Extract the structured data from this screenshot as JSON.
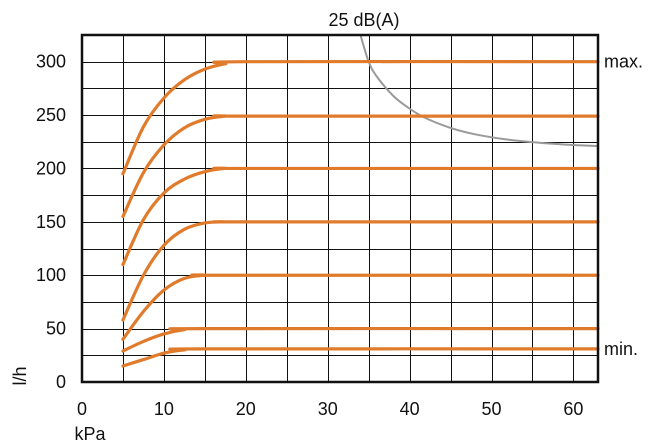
{
  "chart_data": {
    "type": "line",
    "title": "25 dB(A)",
    "xlabel": "kPa",
    "ylabel": "l/h",
    "xlim": [
      0,
      63
    ],
    "ylim": [
      0,
      325
    ],
    "x_ticks": [
      0,
      10,
      20,
      30,
      40,
      50,
      60
    ],
    "y_ticks": [
      0,
      50,
      100,
      150,
      200,
      250,
      300
    ],
    "x_grid_step": 5,
    "y_grid_step": 25,
    "grid": true,
    "line_color": "#e07b2c",
    "noise_color": "#9a9a9a",
    "side_labels": {
      "max": "max.",
      "min": "min."
    },
    "series": [
      {
        "x": [
          5,
          7.5,
          10,
          12.5,
          15,
          17.5,
          20,
          63
        ],
        "y": [
          195,
          239,
          266,
          283,
          293,
          298,
          300,
          300
        ]
      },
      {
        "x": [
          5,
          7.5,
          10,
          12.5,
          15,
          17.5,
          20,
          63
        ],
        "y": [
          155,
          196,
          222,
          238,
          246,
          249,
          249,
          249
        ]
      },
      {
        "x": [
          5,
          7.5,
          10,
          12.5,
          15,
          17.5,
          20,
          63
        ],
        "y": [
          110,
          152,
          177,
          190,
          197,
          200,
          200,
          200
        ]
      },
      {
        "x": [
          5,
          7.5,
          10,
          12.5,
          15,
          17.5,
          20,
          63
        ],
        "y": [
          58,
          100,
          128,
          143,
          149,
          150,
          150,
          150
        ]
      },
      {
        "x": [
          5,
          7.5,
          10,
          12.5,
          15,
          17.5,
          63
        ],
        "y": [
          40,
          66,
          86,
          97,
          100,
          100,
          100
        ]
      },
      {
        "x": [
          5,
          7.5,
          10,
          12.5,
          15,
          63
        ],
        "y": [
          29,
          38,
          45,
          49,
          50,
          50
        ]
      },
      {
        "x": [
          5,
          7.5,
          10,
          12.5,
          15,
          63
        ],
        "y": [
          15,
          21,
          27,
          30,
          31,
          31
        ]
      }
    ],
    "noise_curve": {
      "x": [
        34,
        35,
        36,
        38,
        40,
        42,
        45,
        48,
        52,
        56,
        60,
        63
      ],
      "y": [
        325,
        300,
        286,
        268,
        256,
        247,
        238,
        232,
        227,
        224,
        222,
        221
      ]
    }
  }
}
